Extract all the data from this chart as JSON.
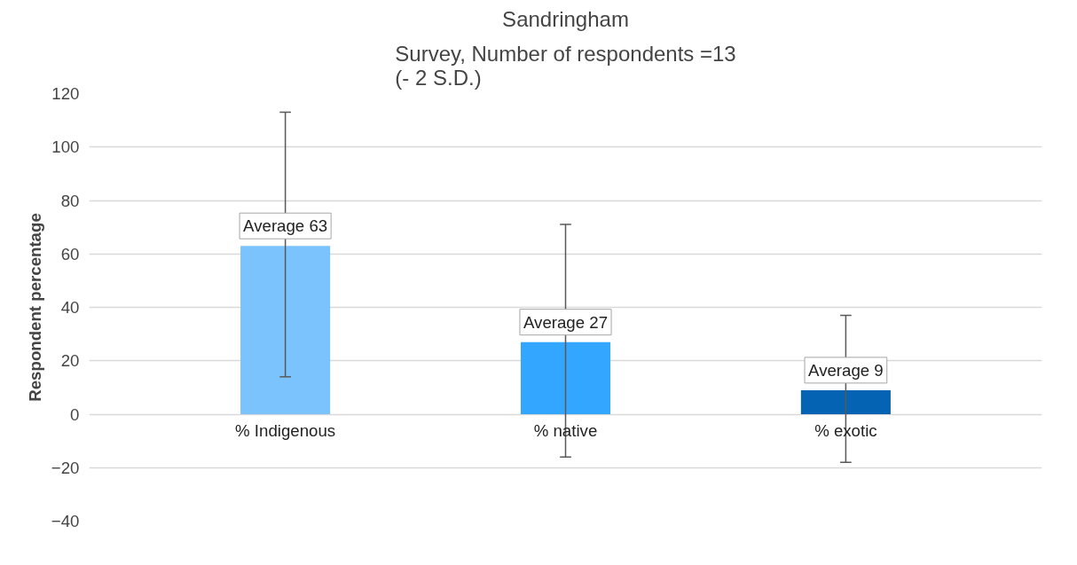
{
  "chart_data": {
    "type": "bar",
    "title": "Sandringham",
    "subtitle": "Survey, Number of respondents =13\n(- 2 S.D.)",
    "ylabel": "Respondent percentage",
    "categories": [
      "% Indigenous",
      "% native",
      "% exotic"
    ],
    "values": [
      63,
      27,
      9
    ],
    "colors": [
      "#7ac3fd",
      "#33a6ff",
      "#0563b3"
    ],
    "errors": [
      [
        14,
        113
      ],
      [
        -16,
        71
      ],
      [
        -18,
        37
      ]
    ],
    "value_labels": [
      "Average 63",
      "Average 27",
      "Average 9"
    ],
    "ylim": [
      -40,
      120
    ],
    "yticks": [
      -40,
      -20,
      0,
      20,
      40,
      60,
      80,
      100,
      120
    ],
    "grid": "y"
  }
}
